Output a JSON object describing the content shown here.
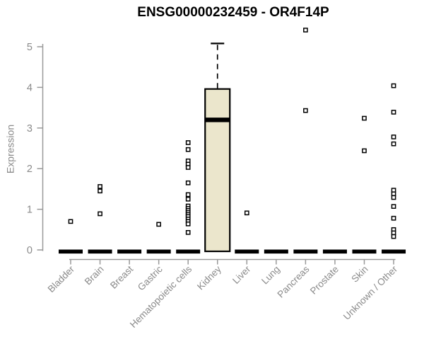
{
  "chart_data": {
    "type": "boxplot",
    "title": "ENSG00000232459 - OR4F14P",
    "ylabel": "Expression",
    "xlabel": "",
    "ylim": [
      0,
      5.45
    ],
    "yticks": [
      0,
      1,
      2,
      3,
      4,
      5
    ],
    "grid": false,
    "legend": false,
    "point_marker": "open-square",
    "categories": [
      "Bladder",
      "Brain",
      "Breast",
      "Gastric",
      "Hematopoietic cells",
      "Kidney",
      "Liver",
      "Lung",
      "Pancreas",
      "Prostate",
      "Skin",
      "Unknown / Other"
    ],
    "boxes": [
      {
        "category": "Bladder",
        "q1": 0,
        "median": 0,
        "q3": 0,
        "whisker_low": 0,
        "whisker_high": 0,
        "outliers": [
          0.7
        ]
      },
      {
        "category": "Brain",
        "q1": 0,
        "median": 0,
        "q3": 0,
        "whisker_low": 0,
        "whisker_high": 0,
        "outliers": [
          1.56,
          1.45,
          0.89
        ]
      },
      {
        "category": "Breast",
        "q1": 0,
        "median": 0,
        "q3": 0,
        "whisker_low": 0,
        "whisker_high": 0,
        "outliers": []
      },
      {
        "category": "Gastric",
        "q1": 0,
        "median": 0,
        "q3": 0,
        "whisker_low": 0,
        "whisker_high": 0,
        "outliers": [
          0.63
        ]
      },
      {
        "category": "Hematopoietic cells",
        "q1": 0,
        "median": 0,
        "q3": 0,
        "whisker_low": 0,
        "whisker_high": 0,
        "outliers": [
          2.64,
          2.47,
          2.19,
          2.11,
          2.03,
          1.65,
          1.36,
          1.25,
          1.08,
          1.02,
          0.97,
          0.92,
          0.87,
          0.82,
          0.76,
          0.7,
          0.64,
          0.43
        ]
      },
      {
        "category": "Kidney",
        "q1": 0,
        "median": 3.2,
        "q3": 3.96,
        "whisker_low": 0,
        "whisker_high": 5.08,
        "outliers": []
      },
      {
        "category": "Liver",
        "q1": 0,
        "median": 0,
        "q3": 0,
        "whisker_low": 0,
        "whisker_high": 0,
        "outliers": [
          0.91
        ]
      },
      {
        "category": "Lung",
        "q1": 0,
        "median": 0,
        "q3": 0,
        "whisker_low": 0,
        "whisker_high": 0,
        "outliers": []
      },
      {
        "category": "Pancreas",
        "q1": 0,
        "median": 0,
        "q3": 0,
        "whisker_low": 0,
        "whisker_high": 0,
        "outliers": [
          5.41,
          3.43
        ]
      },
      {
        "category": "Prostate",
        "q1": 0,
        "median": 0,
        "q3": 0,
        "whisker_low": 0,
        "whisker_high": 0,
        "outliers": []
      },
      {
        "category": "Skin",
        "q1": 0,
        "median": 0,
        "q3": 0,
        "whisker_low": 0,
        "whisker_high": 0,
        "outliers": [
          3.24,
          2.44
        ]
      },
      {
        "category": "Unknown / Other",
        "q1": 0,
        "median": 0,
        "q3": 0,
        "whisker_low": 0,
        "whisker_high": 0,
        "outliers": [
          4.04,
          3.39,
          2.78,
          2.61,
          1.47,
          1.38,
          1.29,
          1.07,
          0.78,
          0.5,
          0.42,
          0.33
        ]
      }
    ],
    "colors": {
      "background": "#ffffff",
      "title": "#000000",
      "axis": "#999999",
      "tick_label": "#8a8a8a",
      "box_fill": "#EBE6CC",
      "box_stroke": "#000000",
      "median": "#000000",
      "outlier_stroke": "#000000",
      "outlier_fill": "#ffffff"
    }
  }
}
